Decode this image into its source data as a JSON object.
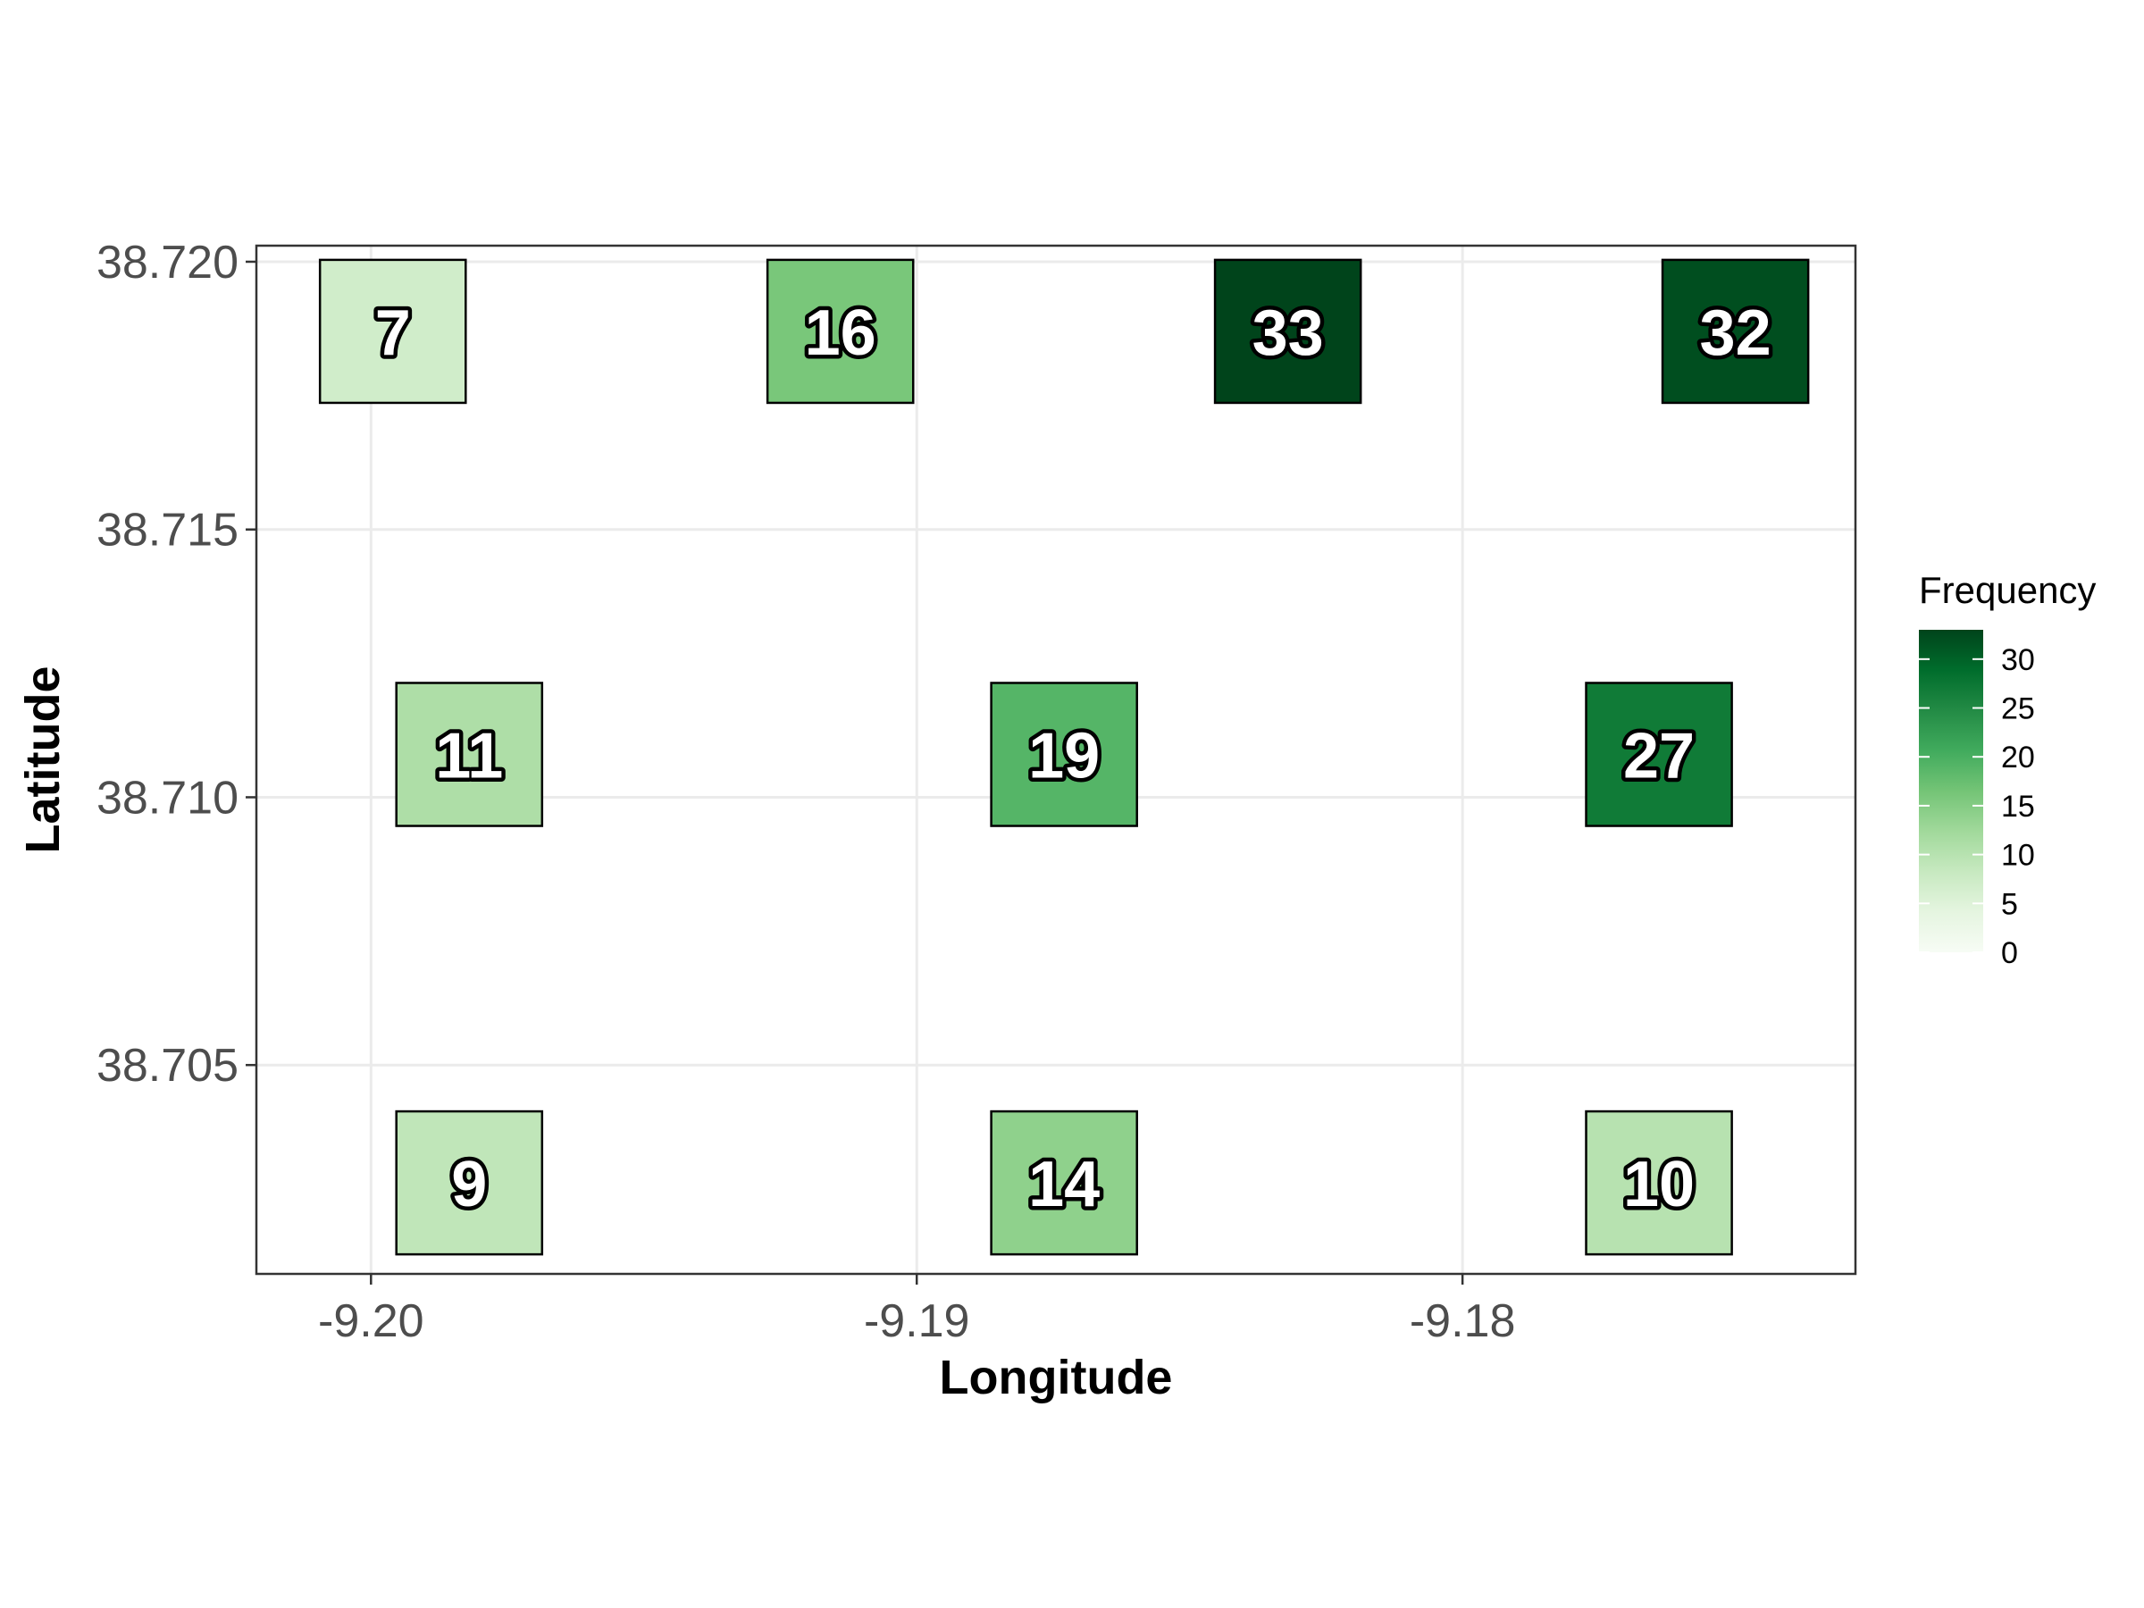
{
  "chart_data": {
    "type": "heatmap",
    "title": "",
    "xlabel": "Longitude",
    "ylabel": "Latitude",
    "xlim": [
      -9.2021,
      -9.1728
    ],
    "ylim": [
      38.7011,
      38.7203
    ],
    "x_ticks": [
      -9.2,
      -9.19,
      -9.18
    ],
    "x_tick_labels": [
      "-9.20",
      "-9.19",
      "-9.18"
    ],
    "y_ticks": [
      38.705,
      38.71,
      38.715,
      38.72
    ],
    "y_tick_labels": [
      "38.705",
      "38.710",
      "38.715",
      "38.720"
    ],
    "grid": true,
    "tile_size": [
      0.00267,
      0.00267
    ],
    "tiles": [
      {
        "x": -9.1996,
        "y": 38.7187,
        "value": 7,
        "label": "7"
      },
      {
        "x": -9.1914,
        "y": 38.7187,
        "value": 16,
        "label": "16"
      },
      {
        "x": -9.1832,
        "y": 38.7187,
        "value": 33,
        "label": "33"
      },
      {
        "x": -9.175,
        "y": 38.7187,
        "value": 32,
        "label": "32"
      },
      {
        "x": -9.1982,
        "y": 38.7108,
        "value": 11,
        "label": "11"
      },
      {
        "x": -9.1873,
        "y": 38.7108,
        "value": 19,
        "label": "19"
      },
      {
        "x": -9.1764,
        "y": 38.7108,
        "value": 27,
        "label": "27"
      },
      {
        "x": -9.1982,
        "y": 38.7028,
        "value": 9,
        "label": "9"
      },
      {
        "x": -9.1873,
        "y": 38.7028,
        "value": 14,
        "label": "14"
      },
      {
        "x": -9.1764,
        "y": 38.7028,
        "value": 10,
        "label": "10"
      }
    ],
    "legend": {
      "title": "Frequency",
      "position": "right",
      "min": 0,
      "max": 33,
      "ticks": [
        0,
        5,
        10,
        15,
        20,
        25,
        30
      ],
      "tick_labels": [
        "0",
        "5",
        "10",
        "15",
        "20",
        "25",
        "30"
      ],
      "colors": [
        "#f7fcf5",
        "#e5f5e0",
        "#c7e9c0",
        "#a1d99b",
        "#74c476",
        "#41ab5d",
        "#238b45",
        "#006d2c",
        "#00441b"
      ]
    }
  }
}
